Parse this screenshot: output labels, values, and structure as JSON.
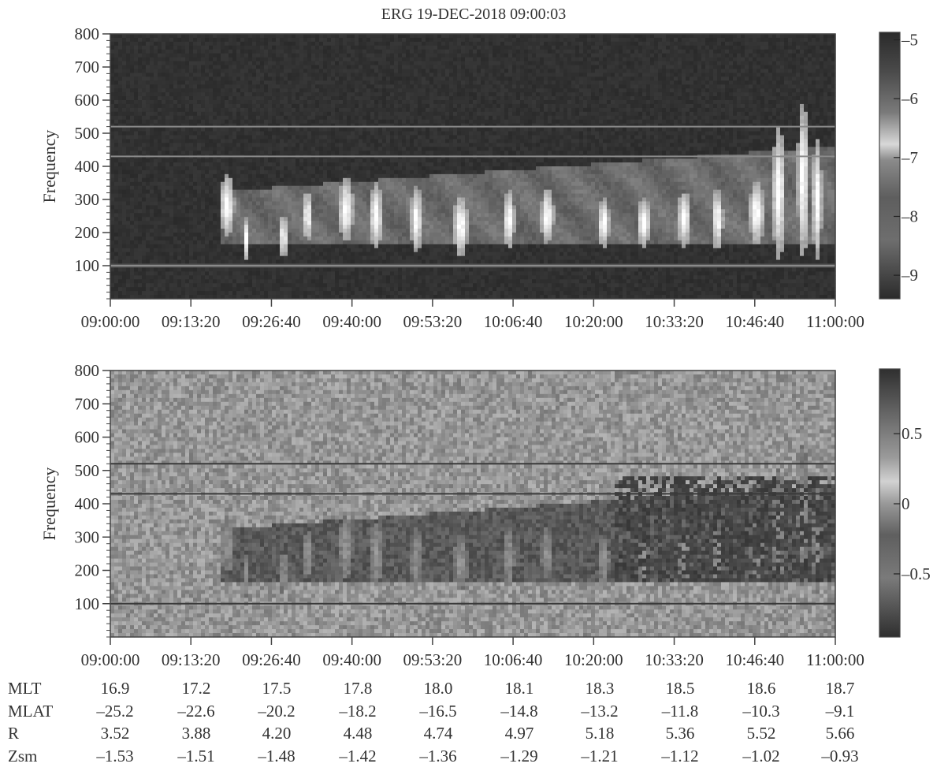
{
  "title": "ERG 19-DEC-2018 09:00:03",
  "chart_data": [
    {
      "type": "heatmap",
      "ylabel": "Frequency",
      "ylim": [
        0,
        800
      ],
      "yticks": [
        "100",
        "200",
        "300",
        "400",
        "500",
        "600",
        "700",
        "800"
      ],
      "xlim": [
        "09:00:00",
        "11:00:00"
      ],
      "xticks": [
        "09:00:00",
        "09:13:20",
        "09:26:40",
        "09:40:00",
        "09:53:20",
        "10:06:40",
        "10:20:00",
        "10:33:20",
        "10:46:40",
        "11:00:00"
      ],
      "colorbar": {
        "range": [
          -9.4,
          -4.9
        ],
        "ticks": [
          "-5",
          "-6",
          "-7",
          "-8",
          "-9"
        ]
      },
      "grid": false,
      "colormap": "grayscale"
    },
    {
      "type": "heatmap",
      "ylabel": "Frequency",
      "ylim": [
        0,
        800
      ],
      "yticks": [
        "100",
        "200",
        "300",
        "400",
        "500",
        "600",
        "700",
        "800"
      ],
      "xlim": [
        "09:00:00",
        "11:00:00"
      ],
      "xticks": [
        "09:00:00",
        "09:13:20",
        "09:26:40",
        "09:40:00",
        "09:53:20",
        "10:06:40",
        "10:20:00",
        "10:33:20",
        "10:46:40",
        "11:00:00"
      ],
      "colorbar": {
        "range": [
          -0.95,
          0.95
        ],
        "ticks": [
          "0.5",
          "0",
          "-0.5"
        ]
      },
      "grid": false,
      "colormap": "grayscale"
    }
  ],
  "ephemeris": [
    {
      "label": "MLT",
      "values": [
        "16.9",
        "17.2",
        "17.5",
        "17.8",
        "18.0",
        "18.1",
        "18.3",
        "18.5",
        "18.6",
        "18.7"
      ]
    },
    {
      "label": "MLAT",
      "values": [
        "–25.2",
        "–22.6",
        "–20.2",
        "–18.2",
        "–16.5",
        "–14.8",
        "–13.2",
        "–11.8",
        "–10.3",
        "–9.1"
      ]
    },
    {
      "label": "R",
      "values": [
        "3.52",
        "3.88",
        "4.20",
        "4.48",
        "4.74",
        "4.97",
        "5.18",
        "5.36",
        "5.52",
        "5.66"
      ]
    },
    {
      "label": "Zsm",
      "values": [
        "–1.53",
        "–1.51",
        "–1.48",
        "–1.42",
        "–1.36",
        "–1.29",
        "–1.21",
        "–1.12",
        "–1.02",
        "–0.93"
      ]
    }
  ]
}
